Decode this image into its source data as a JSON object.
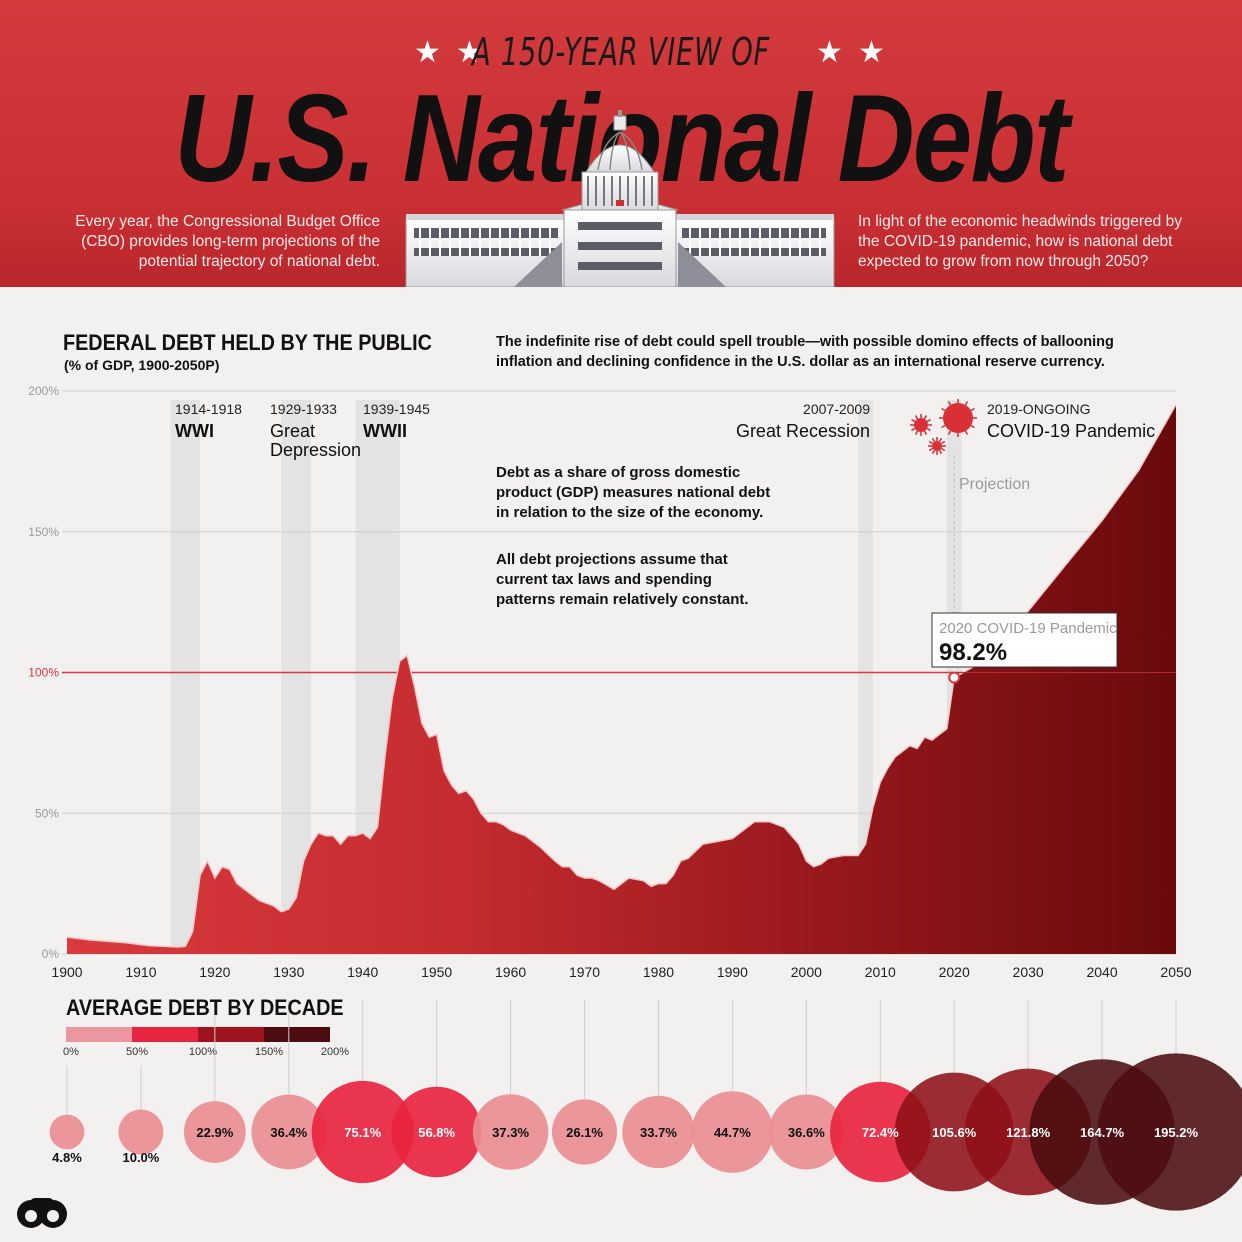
{
  "header": {
    "kicker": "A 150-YEAR VIEW OF",
    "title": "U.S. National Debt",
    "intro_left": "Every year, the Congressional Budget Office (CBO) provides long-term projections of the potential trajectory of national debt.",
    "intro_right": "In light of the economic headwinds triggered by the COVID-19 pandemic, how is national debt expected to grow from now through 2050?"
  },
  "notes": {
    "top": "The indefinite rise of debt could spell trouble—with possible domino effects of ballooning inflation and declining confidence in the U.S. dollar as an international reserve currency.",
    "middle1": "Debt as a share of gross domestic product (GDP) measures national debt in relation to the size of the economy.",
    "middle2": "All debt projections assume that current tax laws and spending patterns remain relatively constant."
  },
  "colors": {
    "header_red": "#cf3337",
    "area_light": "#d9383c",
    "area_dark": "#6a0a0c",
    "reference_line": "#d9383c",
    "dot_light": "#e98e94",
    "dot_mid": "#e8253f",
    "dot_dark": "#6c0f16"
  },
  "chart_data": [
    {
      "type": "area",
      "title": "FEDERAL DEBT HELD BY THE PUBLIC",
      "subtitle": "(% of GDP, 1900-2050P)",
      "xlim": [
        1900,
        2050
      ],
      "ylim": [
        0,
        200
      ],
      "x_ticks": [
        "1900",
        "1910",
        "1920",
        "1930",
        "1940",
        "1950",
        "1960",
        "1970",
        "1980",
        "1990",
        "2000",
        "2010",
        "2020",
        "2030",
        "2040",
        "2050"
      ],
      "y_ticks": [
        "0%",
        "50%",
        "100%",
        "150%",
        "200%"
      ],
      "grid": true,
      "reference_line": 100,
      "series": [
        {
          "values": [
            [
              1900,
              6
            ],
            [
              1903,
              5
            ],
            [
              1908,
              4
            ],
            [
              1911,
              3
            ],
            [
              1915,
              2.5
            ],
            [
              1916,
              2.7
            ],
            [
              1917,
              8
            ],
            [
              1918,
              28
            ],
            [
              1919,
              33
            ],
            [
              1920,
              27
            ],
            [
              1921,
              31
            ],
            [
              1922,
              30
            ],
            [
              1923,
              25
            ],
            [
              1924,
              23
            ],
            [
              1926,
              19
            ],
            [
              1928,
              17
            ],
            [
              1929,
              15
            ],
            [
              1930,
              16
            ],
            [
              1931,
              20
            ],
            [
              1932,
              33
            ],
            [
              1933,
              39
            ],
            [
              1934,
              43
            ],
            [
              1935,
              42
            ],
            [
              1936,
              42
            ],
            [
              1937,
              39
            ],
            [
              1938,
              42
            ],
            [
              1939,
              42
            ],
            [
              1940,
              43
            ],
            [
              1941,
              41
            ],
            [
              1942,
              45
            ],
            [
              1943,
              70
            ],
            [
              1944,
              91
            ],
            [
              1945,
              104
            ],
            [
              1946,
              106
            ],
            [
              1947,
              95
            ],
            [
              1948,
              82
            ],
            [
              1949,
              77
            ],
            [
              1950,
              78
            ],
            [
              1951,
              65
            ],
            [
              1952,
              60
            ],
            [
              1953,
              57
            ],
            [
              1954,
              58
            ],
            [
              1955,
              55
            ],
            [
              1956,
              50
            ],
            [
              1957,
              47
            ],
            [
              1958,
              47
            ],
            [
              1959,
              46
            ],
            [
              1960,
              44
            ],
            [
              1962,
              42
            ],
            [
              1964,
              38
            ],
            [
              1966,
              33
            ],
            [
              1967,
              31
            ],
            [
              1968,
              31
            ],
            [
              1969,
              28
            ],
            [
              1970,
              27
            ],
            [
              1971,
              27
            ],
            [
              1972,
              26
            ],
            [
              1974,
              23
            ],
            [
              1975,
              25
            ],
            [
              1976,
              27
            ],
            [
              1978,
              26
            ],
            [
              1979,
              24
            ],
            [
              1980,
              25
            ],
            [
              1981,
              25
            ],
            [
              1982,
              28
            ],
            [
              1983,
              33
            ],
            [
              1984,
              34
            ],
            [
              1986,
              39
            ],
            [
              1988,
              40
            ],
            [
              1990,
              41
            ],
            [
              1992,
              45
            ],
            [
              1993,
              47
            ],
            [
              1995,
              47
            ],
            [
              1997,
              45
            ],
            [
              1999,
              39
            ],
            [
              2000,
              33
            ],
            [
              2001,
              31
            ],
            [
              2002,
              32
            ],
            [
              2003,
              34
            ],
            [
              2005,
              35
            ],
            [
              2007,
              35
            ],
            [
              2008,
              39
            ],
            [
              2009,
              52
            ],
            [
              2010,
              61
            ],
            [
              2011,
              66
            ],
            [
              2012,
              70
            ],
            [
              2014,
              74
            ],
            [
              2015,
              73
            ],
            [
              2016,
              77
            ],
            [
              2017,
              76
            ],
            [
              2018,
              78
            ],
            [
              2019,
              80
            ],
            [
              2020,
              98.2
            ],
            [
              2025,
              105.6
            ],
            [
              2030,
              121.8
            ],
            [
              2035,
              138
            ],
            [
              2040,
              154
            ],
            [
              2045,
              172
            ],
            [
              2050,
              195.2
            ]
          ]
        }
      ],
      "events": [
        {
          "years": "1914-1918",
          "label": "WWI",
          "start": 1914,
          "end": 1918
        },
        {
          "years": "1929-1933",
          "label": "Great Depression",
          "start": 1929,
          "end": 1933
        },
        {
          "years": "1939-1945",
          "label": "WWII",
          "start": 1939,
          "end": 1945
        },
        {
          "years": "2007-2009",
          "label": "Great Recession",
          "start": 2007,
          "end": 2009
        },
        {
          "years": "2019-ONGOING",
          "label": "COVID-19 Pandemic",
          "start": 2019,
          "end": 2021
        }
      ],
      "projection_label": "Projection",
      "projection_start": 2020,
      "callout": {
        "label": "2020 COVID-19 Pandemic",
        "value": "98.2%",
        "x": 2020,
        "y": 98.2
      }
    },
    {
      "type": "scatter",
      "title": "AVERAGE DEBT BY DECADE",
      "legend_ticks": [
        "0%",
        "50%",
        "100%",
        "150%",
        "200%"
      ],
      "legend_colors": [
        "#ea97a0",
        "#e8253f",
        "#a0141f",
        "#4d0c10"
      ],
      "points": [
        {
          "decade": 1900,
          "value": 4.8,
          "label": "4.8%"
        },
        {
          "decade": 1910,
          "value": 10.0,
          "label": "10.0%"
        },
        {
          "decade": 1920,
          "value": 22.9,
          "label": "22.9%"
        },
        {
          "decade": 1930,
          "value": 36.4,
          "label": "36.4%"
        },
        {
          "decade": 1940,
          "value": 75.1,
          "label": "75.1%"
        },
        {
          "decade": 1950,
          "value": 56.8,
          "label": "56.8%"
        },
        {
          "decade": 1960,
          "value": 37.3,
          "label": "37.3%"
        },
        {
          "decade": 1970,
          "value": 26.1,
          "label": "26.1%"
        },
        {
          "decade": 1980,
          "value": 33.7,
          "label": "33.7%"
        },
        {
          "decade": 1990,
          "value": 44.7,
          "label": "44.7%"
        },
        {
          "decade": 2000,
          "value": 36.6,
          "label": "36.6%"
        },
        {
          "decade": 2010,
          "value": 72.4,
          "label": "72.4%"
        },
        {
          "decade": 2020,
          "value": 105.6,
          "label": "105.6%"
        },
        {
          "decade": 2030,
          "value": 121.8,
          "label": "121.8%"
        },
        {
          "decade": 2040,
          "value": 164.7,
          "label": "164.7%"
        },
        {
          "decade": 2050,
          "value": 195.2,
          "label": "195.2%"
        }
      ]
    }
  ]
}
